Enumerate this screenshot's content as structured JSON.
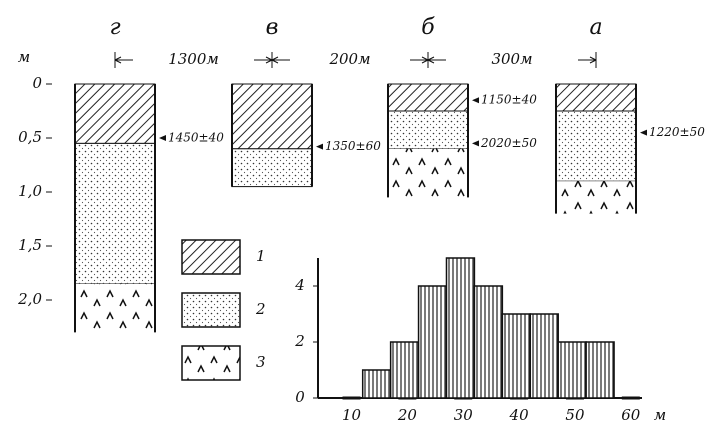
{
  "depth_axis": {
    "unit": "м",
    "ticks": [
      {
        "value": 0,
        "label": "0"
      },
      {
        "value": 0.5,
        "label": "0,5"
      },
      {
        "value": 1.0,
        "label": "1,0"
      },
      {
        "value": 1.5,
        "label": "1,5"
      },
      {
        "value": 2.0,
        "label": "2,0"
      }
    ]
  },
  "columns": [
    {
      "label": "г",
      "layers": [
        {
          "type": 1,
          "top": 0,
          "bottom": 0.55
        },
        {
          "type": 2,
          "top": 0.55,
          "bottom": 1.85
        },
        {
          "type": 3,
          "top": 1.85,
          "bottom": 2.3
        }
      ],
      "dates": [
        {
          "label": "1450±40",
          "depth": 0.5
        }
      ]
    },
    {
      "label": "в",
      "layers": [
        {
          "type": 1,
          "top": 0,
          "bottom": 0.6
        },
        {
          "type": 2,
          "top": 0.6,
          "bottom": 0.95
        }
      ],
      "dates": [
        {
          "label": "1350±60",
          "depth": 0.58
        }
      ]
    },
    {
      "label": "б",
      "layers": [
        {
          "type": 1,
          "top": 0,
          "bottom": 0.25
        },
        {
          "type": 2,
          "top": 0.25,
          "bottom": 0.6
        },
        {
          "type": 3,
          "top": 0.6,
          "bottom": 1.05
        }
      ],
      "dates": [
        {
          "label": "1150±40",
          "depth": 0.15
        },
        {
          "label": "2020±50",
          "depth": 0.55
        }
      ]
    },
    {
      "label": "а",
      "layers": [
        {
          "type": 1,
          "top": 0,
          "bottom": 0.25
        },
        {
          "type": 2,
          "top": 0.25,
          "bottom": 0.9
        },
        {
          "type": 3,
          "top": 0.9,
          "bottom": 1.2
        }
      ],
      "dates": [
        {
          "label": "1220±50",
          "depth": 0.45
        }
      ]
    }
  ],
  "distances": [
    "1300м",
    "200м",
    "300м"
  ],
  "legend": [
    "1",
    "2",
    "3"
  ],
  "chart_data": {
    "type": "histogram",
    "bins": [
      12,
      17,
      22,
      27,
      32,
      37,
      42,
      47,
      52,
      57
    ],
    "counts": [
      1,
      2,
      4,
      5,
      4,
      3,
      3,
      2,
      2
    ],
    "xlim": [
      4,
      62
    ],
    "ylim": [
      0,
      5
    ],
    "xticks": [
      10,
      20,
      30,
      40,
      50,
      60
    ],
    "yticks": [
      0,
      2,
      4
    ],
    "xlabel": "м"
  }
}
